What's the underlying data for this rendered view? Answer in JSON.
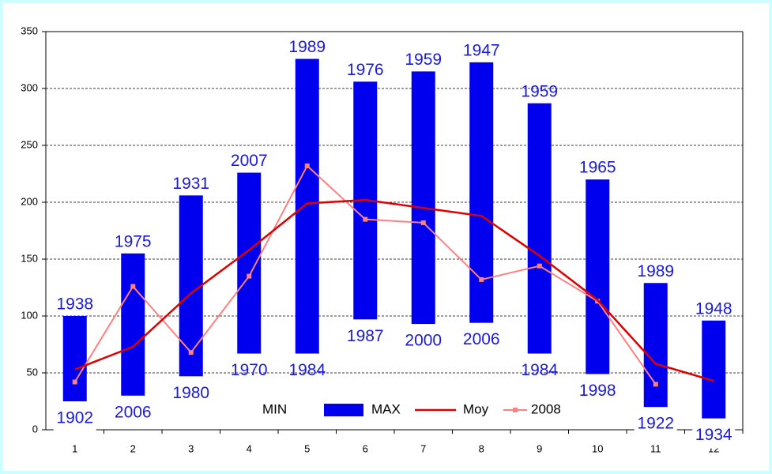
{
  "chart_data": {
    "type": "floating-bar-line",
    "categories": [
      1,
      2,
      3,
      4,
      5,
      6,
      7,
      8,
      9,
      10,
      11,
      12
    ],
    "series": [
      {
        "name": "MIN",
        "values": [
          25,
          30,
          47,
          67,
          67,
          97,
          93,
          94,
          67,
          49,
          20,
          10
        ],
        "years": [
          1902,
          2006,
          1980,
          1970,
          1984,
          1987,
          2000,
          2006,
          1984,
          1998,
          1922,
          1934
        ]
      },
      {
        "name": "MAX",
        "color": "#0000ee",
        "values": [
          100,
          155,
          206,
          226,
          326,
          306,
          315,
          323,
          287,
          220,
          129,
          96
        ],
        "years": [
          1938,
          1975,
          1931,
          2007,
          1989,
          1976,
          1959,
          1947,
          1959,
          1965,
          1989,
          1948
        ]
      },
      {
        "name": "Moy",
        "color": "#dd0000",
        "values": [
          53,
          73,
          120,
          158,
          199,
          202,
          195,
          188,
          153,
          114,
          58,
          43
        ]
      },
      {
        "name": "2008",
        "color": "#ff8080",
        "values": [
          42,
          126,
          68,
          135,
          232,
          185,
          182,
          132,
          144,
          113,
          40,
          null
        ]
      }
    ],
    "ylim": [
      0,
      350
    ],
    "yticks": [
      0,
      50,
      100,
      150,
      200,
      250,
      300,
      350
    ],
    "grid": true
  }
}
